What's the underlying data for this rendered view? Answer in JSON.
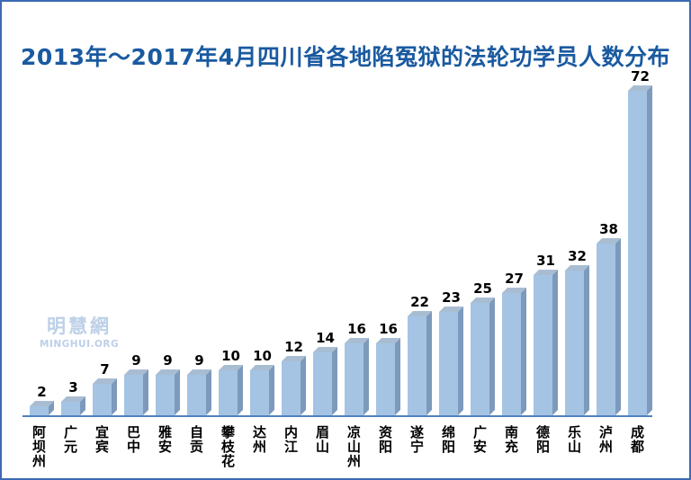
{
  "chart_data": {
    "type": "bar",
    "bar_style": "3d",
    "orientation": "vertical",
    "title": "2013年～2017年4月四川省各地陷冤狱的法轮功学员人数分布",
    "categories": [
      "阿坝州",
      "广元",
      "宜宾",
      "巴中",
      "雅安",
      "自贡",
      "攀枝花",
      "达州",
      "内江",
      "眉山",
      "凉山州",
      "资阳",
      "遂宁",
      "绵阳",
      "广安",
      "南充",
      "德阳",
      "乐山",
      "泸州",
      "成都"
    ],
    "values": [
      2,
      3,
      7,
      9,
      9,
      9,
      10,
      10,
      12,
      14,
      16,
      16,
      22,
      23,
      25,
      27,
      31,
      32,
      38,
      72
    ],
    "xlabel": "",
    "ylabel": "",
    "ylim": [
      0,
      72
    ],
    "grid": false,
    "legend": false,
    "data_labels": true,
    "category_label_writing": "vertical-stacked"
  },
  "watermark": {
    "chinese": "明慧網",
    "latin": "MINGHUI.ORG"
  },
  "colors": {
    "background": "#ffffff",
    "frame_border": "#3c69b4",
    "title_text": "#1a5aa0",
    "bar_front": "#a5c4e4",
    "bar_top": "#a9bdd2",
    "bar_side": "#7d9abc",
    "axis_line": "#4f81bd",
    "value_label_text": "#000000",
    "category_label_text": "#000000",
    "watermark_text": "#bcd0e8"
  }
}
